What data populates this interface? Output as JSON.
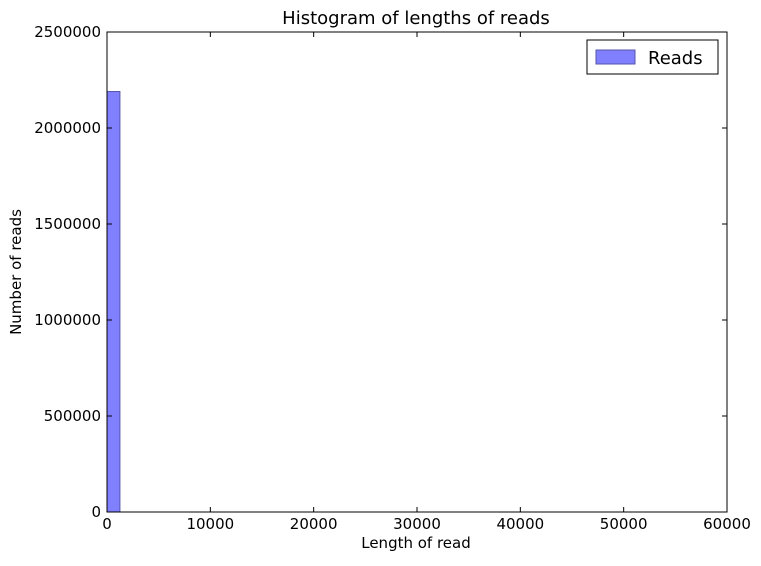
{
  "chart_data": {
    "type": "bar",
    "title": "Histogram of lengths of reads",
    "xlabel": "Length of read",
    "ylabel": "Number of reads",
    "xlim": [
      0,
      60000
    ],
    "ylim": [
      0,
      2500000
    ],
    "x_ticks": [
      "0",
      "10000",
      "20000",
      "30000",
      "40000",
      "50000",
      "60000"
    ],
    "y_ticks": [
      "0",
      "500000",
      "1000000",
      "1500000",
      "2000000",
      "2500000"
    ],
    "legend_position": "top-right",
    "grid": false,
    "series": [
      {
        "name": "Reads",
        "color": "#8080ff",
        "bins": [
          {
            "x0": 0,
            "x1": 1250,
            "value": 2190000
          }
        ]
      }
    ]
  }
}
